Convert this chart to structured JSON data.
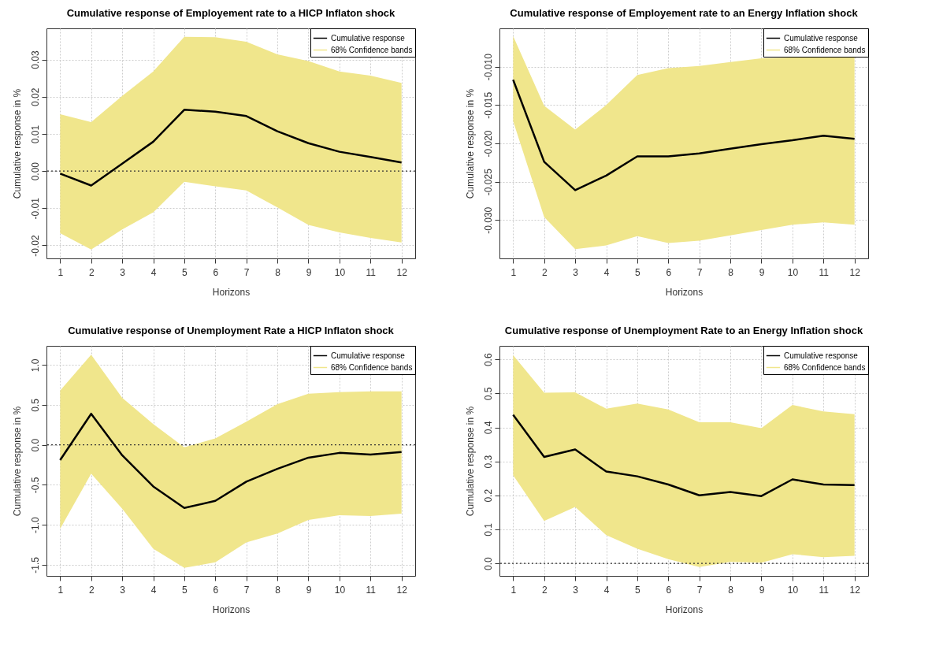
{
  "chart_data": [
    {
      "type": "line",
      "title": "Cumulative response of Employement rate to a HICP Inflaton shock",
      "xlabel": "Horizons",
      "ylabel": "Cumulative response in %",
      "x": [
        1,
        2,
        3,
        4,
        5,
        6,
        7,
        8,
        9,
        10,
        11,
        12
      ],
      "xlim": [
        0.56,
        12.44
      ],
      "xticks": [
        1,
        2,
        3,
        4,
        5,
        6,
        7,
        8,
        9,
        10,
        11,
        12
      ],
      "ylim": [
        -0.0235,
        0.0384
      ],
      "yticks": [
        {
          "value": -0.02,
          "label": "-0.02"
        },
        {
          "value": -0.01,
          "label": "-0.01"
        },
        {
          "value": 0,
          "label": "0.00"
        },
        {
          "value": 0.01,
          "label": "0.01"
        },
        {
          "value": 0.02,
          "label": "0.02"
        },
        {
          "value": 0.03,
          "label": "0.03"
        }
      ],
      "series": [
        {
          "name": "Cumulative response",
          "color": "#000000",
          "values": [
            -0.0007,
            -0.0039,
            0.002,
            0.0079,
            0.0165,
            0.016,
            0.0148,
            0.0107,
            0.0075,
            0.0052,
            0.0038,
            0.0023
          ],
          "upper": [
            0.0153,
            0.0132,
            0.0202,
            0.0268,
            0.0361,
            0.036,
            0.0348,
            0.0314,
            0.0296,
            0.0268,
            0.0257,
            0.0237
          ],
          "lower": [
            -0.0167,
            -0.0211,
            -0.0157,
            -0.0111,
            -0.0029,
            -0.0041,
            -0.0052,
            -0.0098,
            -0.0145,
            -0.0165,
            -0.018,
            -0.0192
          ]
        }
      ],
      "annotations": [
        "68% Confidence bands"
      ],
      "ref_lines": [
        {
          "axis": "y",
          "value": 0,
          "line_style": "dotted"
        }
      ],
      "grid": true,
      "legend": "top right"
    },
    {
      "type": "line",
      "title": "Cumulative response of Employement rate to an Energy Inflation shock",
      "xlabel": "Horizons",
      "ylabel": "Cumulative response in %",
      "x": [
        1,
        2,
        3,
        4,
        5,
        6,
        7,
        8,
        9,
        10,
        11,
        12
      ],
      "xlim": [
        0.56,
        12.44
      ],
      "xticks": [
        1,
        2,
        3,
        4,
        5,
        6,
        7,
        8,
        9,
        10,
        11,
        12
      ],
      "ylim": [
        -0.035,
        -0.005
      ],
      "yticks": [
        {
          "value": -0.03,
          "label": "-0.030"
        },
        {
          "value": -0.025,
          "label": "-0.025"
        },
        {
          "value": -0.02,
          "label": "-0.020"
        },
        {
          "value": -0.015,
          "label": "-0.015"
        },
        {
          "value": -0.01,
          "label": "-0.010"
        }
      ],
      "series": [
        {
          "name": "Cumulative response",
          "color": "#000000",
          "values": [
            -0.0117,
            -0.0224,
            -0.0261,
            -0.0242,
            -0.0217,
            -0.0217,
            -0.0213,
            -0.0207,
            -0.0201,
            -0.0196,
            -0.019,
            -0.0194
          ],
          "upper": [
            -0.006,
            -0.0151,
            -0.0182,
            -0.015,
            -0.0111,
            -0.0102,
            -0.0099,
            -0.0094,
            -0.0089,
            -0.0088,
            -0.0088,
            -0.0088
          ],
          "lower": [
            -0.0171,
            -0.0296,
            -0.0338,
            -0.0333,
            -0.0321,
            -0.033,
            -0.0327,
            -0.032,
            -0.0313,
            -0.0306,
            -0.0303,
            -0.0306
          ]
        }
      ],
      "annotations": [
        "68% Confidence bands"
      ],
      "grid": true,
      "legend": "top right"
    },
    {
      "type": "line",
      "title": "Cumulative response of Unemployment Rate a HICP Inflaton shock",
      "xlabel": "Horizons",
      "ylabel": "Cumulative response in %",
      "x": [
        1,
        2,
        3,
        4,
        5,
        6,
        7,
        8,
        9,
        10,
        11,
        12
      ],
      "xlim": [
        0.56,
        12.44
      ],
      "xticks": [
        1,
        2,
        3,
        4,
        5,
        6,
        7,
        8,
        9,
        10,
        11,
        12
      ],
      "ylim": [
        -1.64,
        1.24
      ],
      "yticks": [
        {
          "value": -1.5,
          "label": "-1.5"
        },
        {
          "value": -1,
          "label": "-1.0"
        },
        {
          "value": -0.5,
          "label": "-0.5"
        },
        {
          "value": 0,
          "label": "0.0"
        },
        {
          "value": 0.5,
          "label": "0.5"
        },
        {
          "value": 1,
          "label": "1.0"
        }
      ],
      "series": [
        {
          "name": "Cumulative response",
          "color": "#000000",
          "values": [
            -0.19,
            0.39,
            -0.13,
            -0.52,
            -0.79,
            -0.7,
            -0.46,
            -0.3,
            -0.16,
            -0.1,
            -0.12,
            -0.09
          ],
          "upper": [
            0.68,
            1.13,
            0.59,
            0.26,
            -0.03,
            0.08,
            0.29,
            0.51,
            0.64,
            0.66,
            0.67,
            0.67
          ],
          "lower": [
            -1.05,
            -0.36,
            -0.8,
            -1.3,
            -1.54,
            -1.47,
            -1.22,
            -1.11,
            -0.94,
            -0.88,
            -0.89,
            -0.86
          ]
        }
      ],
      "annotations": [
        "68% Confidence bands"
      ],
      "ref_lines": [
        {
          "axis": "y",
          "value": 0,
          "line_style": "dotted"
        }
      ],
      "grid": true,
      "legend": "top right"
    },
    {
      "type": "line",
      "title": "Cumulative response of Unemployment Rate to an Energy Inflation shock",
      "xlabel": "Horizons",
      "ylabel": "Cumulative response in %",
      "x": [
        1,
        2,
        3,
        4,
        5,
        6,
        7,
        8,
        9,
        10,
        11,
        12
      ],
      "xlim": [
        0.56,
        12.44
      ],
      "xticks": [
        1,
        2,
        3,
        4,
        5,
        6,
        7,
        8,
        9,
        10,
        11,
        12
      ],
      "ylim": [
        -0.037,
        0.64
      ],
      "yticks": [
        {
          "value": 0,
          "label": "0.0"
        },
        {
          "value": 0.1,
          "label": "0.1"
        },
        {
          "value": 0.2,
          "label": "0.2"
        },
        {
          "value": 0.3,
          "label": "0.3"
        },
        {
          "value": 0.4,
          "label": "0.4"
        },
        {
          "value": 0.5,
          "label": "0.5"
        },
        {
          "value": 0.6,
          "label": "0.6"
        }
      ],
      "series": [
        {
          "name": "Cumulative response",
          "color": "#000000",
          "values": [
            0.437,
            0.313,
            0.335,
            0.27,
            0.256,
            0.232,
            0.2,
            0.21,
            0.198,
            0.247,
            0.232,
            0.23
          ],
          "upper": [
            0.613,
            0.502,
            0.503,
            0.455,
            0.47,
            0.453,
            0.415,
            0.415,
            0.398,
            0.466,
            0.447,
            0.439
          ],
          "lower": [
            0.259,
            0.125,
            0.166,
            0.083,
            0.043,
            0.012,
            -0.011,
            0.004,
            0.002,
            0.027,
            0.018,
            0.022
          ]
        }
      ],
      "annotations": [
        "68% Confidence bands"
      ],
      "ref_lines": [
        {
          "axis": "y",
          "value": 0,
          "line_style": "dotted"
        }
      ],
      "grid": true,
      "legend": "top right"
    }
  ]
}
